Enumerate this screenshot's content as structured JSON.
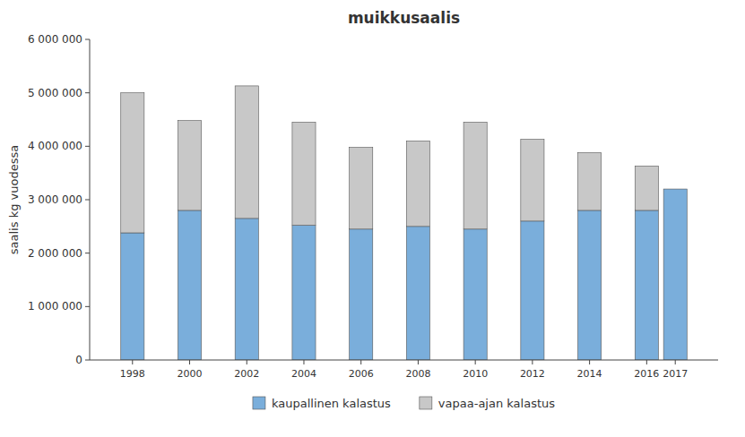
{
  "chart_data": {
    "type": "bar",
    "stacked": true,
    "title": "muikkusaalis",
    "y_label": "saalis kg vuodessa",
    "x": [
      1998,
      2000,
      2002,
      2004,
      2006,
      2008,
      2010,
      2012,
      2014,
      2016,
      2017
    ],
    "xlim": [
      1996.5,
      2018.5
    ],
    "xticks": [
      1998,
      2000,
      2002,
      2004,
      2006,
      2008,
      2010,
      2012,
      2014,
      2016,
      2017
    ],
    "ylim": [
      0,
      6000000
    ],
    "yticks": [
      0,
      {
        "value": 1000000,
        "label": "1 000 000"
      },
      {
        "value": 2000000,
        "label": "2 000 000"
      },
      {
        "value": 3000000,
        "label": "3 000 000"
      },
      {
        "value": 4000000,
        "label": "4 000 000"
      },
      {
        "value": 5000000,
        "label": "5 000 000"
      },
      {
        "value": 6000000,
        "label": "6 000 000"
      }
    ],
    "grid": false,
    "legend": "bottom",
    "series": [
      {
        "name": "kaupallinen kalastus",
        "color": "#7aaedb",
        "values": [
          2380000,
          2800000,
          2650000,
          2520000,
          2450000,
          2500000,
          2450000,
          2600000,
          2800000,
          2800000,
          3200000
        ]
      },
      {
        "name": "vapaa-ajan kalastus",
        "color": "#c8c8c8",
        "values": [
          2620000,
          1680000,
          2480000,
          1930000,
          1530000,
          1600000,
          2000000,
          1530000,
          1080000,
          830000,
          0
        ]
      }
    ]
  }
}
